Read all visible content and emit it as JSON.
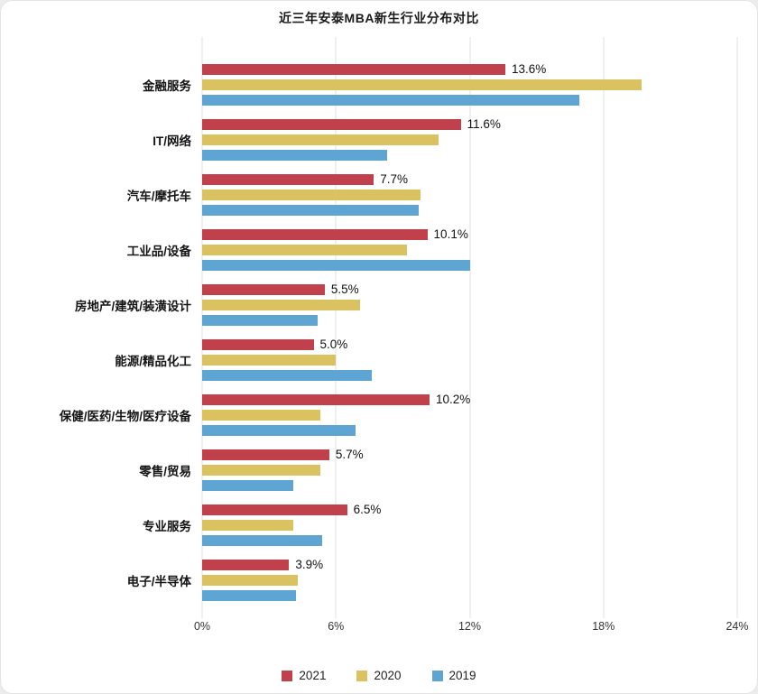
{
  "title": "近三年安泰MBA新生行业分布对比",
  "chart_data": {
    "type": "bar",
    "orientation": "horizontal",
    "title": "近三年安泰MBA新生行业分布对比",
    "categories": [
      "金融服务",
      "IT/网络",
      "汽车/摩托车",
      "工业品/设备",
      "房地产/建筑/装潢设计",
      "能源/精品化工",
      "保健/医药/生物/医疗设备",
      "零售/贸易",
      "专业服务",
      "电子/半导体"
    ],
    "series": [
      {
        "name": "2021",
        "color": "#c0404c",
        "values": [
          13.6,
          11.6,
          7.7,
          10.1,
          5.5,
          5.0,
          10.2,
          5.7,
          6.5,
          3.9
        ],
        "labels": [
          "13.6%",
          "11.6%",
          "7.7%",
          "10.1%",
          "5.5%",
          "5.0%",
          "10.2%",
          "5.7%",
          "6.5%",
          "3.9%"
        ]
      },
      {
        "name": "2020",
        "color": "#d9c25f",
        "values": [
          19.7,
          10.6,
          9.8,
          9.2,
          7.1,
          6.0,
          5.3,
          5.3,
          4.1,
          4.3
        ]
      },
      {
        "name": "2019",
        "color": "#5ea5d4",
        "values": [
          16.9,
          8.3,
          9.7,
          12.0,
          5.2,
          7.6,
          6.9,
          4.1,
          5.4,
          4.2
        ]
      }
    ],
    "x_ticks": [
      "0%",
      "6%",
      "12%",
      "18%",
      "24%"
    ],
    "xlim": [
      0,
      24
    ],
    "grid": true,
    "legend": [
      "2021",
      "2020",
      "2019"
    ],
    "legend_position": "bottom"
  }
}
